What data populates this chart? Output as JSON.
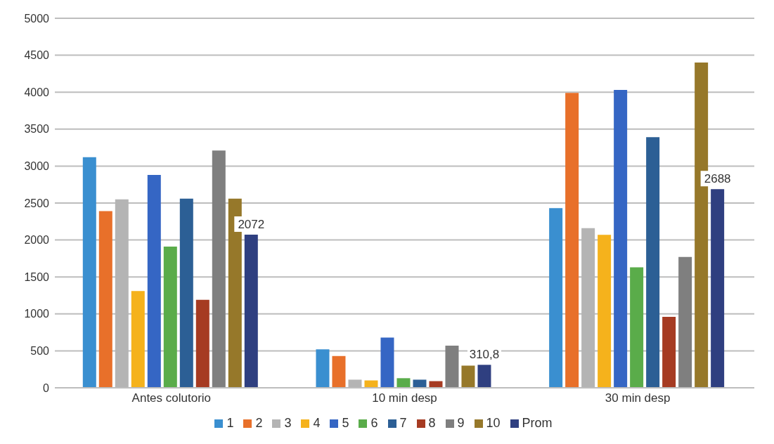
{
  "chart_data": {
    "type": "bar",
    "categories": [
      "Antes colutorio",
      "10 min desp",
      "30 min desp"
    ],
    "series": [
      {
        "name": "1",
        "color": "#3a8fd0",
        "values": [
          3120,
          520,
          2430
        ]
      },
      {
        "name": "2",
        "color": "#e8702a",
        "values": [
          2390,
          430,
          3990
        ]
      },
      {
        "name": "3",
        "color": "#b4b4b4",
        "values": [
          2550,
          110,
          2160
        ]
      },
      {
        "name": "4",
        "color": "#f5b21c",
        "values": [
          1310,
          100,
          2070
        ]
      },
      {
        "name": "5",
        "color": "#3566c4",
        "values": [
          2880,
          680,
          4030
        ]
      },
      {
        "name": "6",
        "color": "#5aac4a",
        "values": [
          1910,
          130,
          1630
        ]
      },
      {
        "name": "7",
        "color": "#2c5f95",
        "values": [
          2560,
          110,
          3390
        ]
      },
      {
        "name": "8",
        "color": "#a63b22",
        "values": [
          1190,
          90,
          960
        ]
      },
      {
        "name": "9",
        "color": "#7f7f7f",
        "values": [
          3210,
          570,
          1770
        ]
      },
      {
        "name": "10",
        "color": "#96782a",
        "values": [
          2560,
          300,
          4400
        ]
      },
      {
        "name": "Prom",
        "color": "#2f3f80",
        "values": [
          2072,
          310.8,
          2688
        ],
        "value_labels": [
          "2072",
          "310,8",
          "2688"
        ]
      }
    ],
    "ylim": [
      0,
      5000
    ],
    "yticks": [
      0,
      500,
      1000,
      1500,
      2000,
      2500,
      3000,
      3500,
      4000,
      4500,
      5000
    ],
    "grid": "y",
    "legend": "bottom"
  }
}
